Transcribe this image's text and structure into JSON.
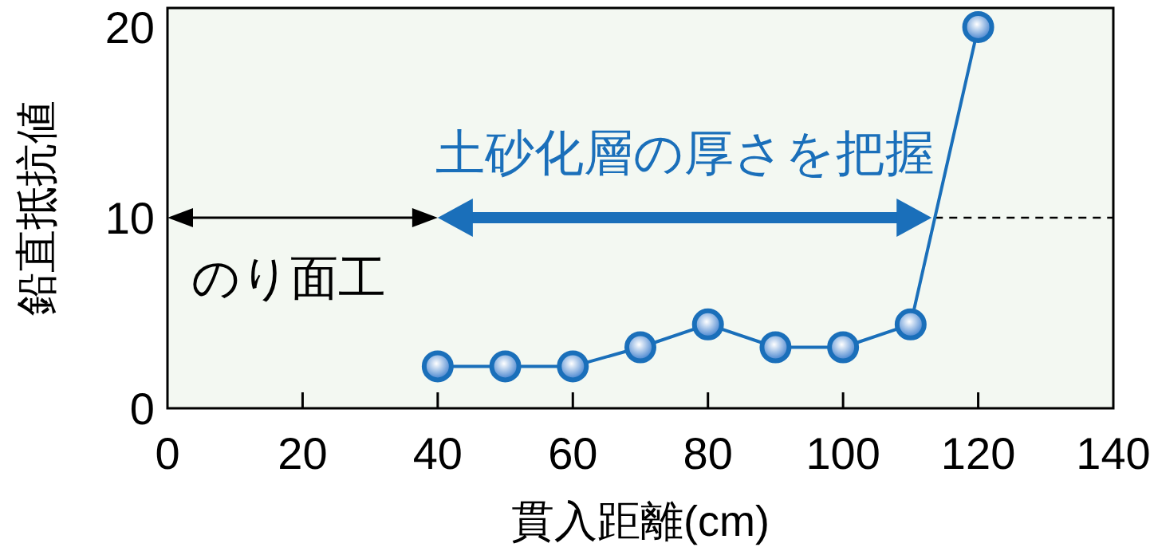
{
  "chart_data": {
    "type": "line",
    "xlabel": "貫入距離(cm)",
    "ylabel": "鉛直抵抗値",
    "x": [
      40,
      50,
      60,
      70,
      80,
      90,
      100,
      110,
      120
    ],
    "series": [
      {
        "color": "#1a6fba",
        "values": [
          2.2,
          2.2,
          2.2,
          3.2,
          4.4,
          3.2,
          3.2,
          4.4,
          20.0
        ]
      }
    ],
    "xlim": [
      0,
      140
    ],
    "xticks": [
      0,
      20,
      40,
      60,
      80,
      100,
      120,
      140
    ],
    "ylim": [
      0,
      21
    ],
    "yticks": [
      0,
      10,
      20
    ],
    "ref_lines": [
      {
        "axis": "y",
        "value": 10,
        "line_style": "dashed",
        "color": "#000000"
      }
    ],
    "annotations": [
      "のり面工",
      "土砂化層の厚さを把握"
    ],
    "marker": "circle",
    "grid": false
  }
}
